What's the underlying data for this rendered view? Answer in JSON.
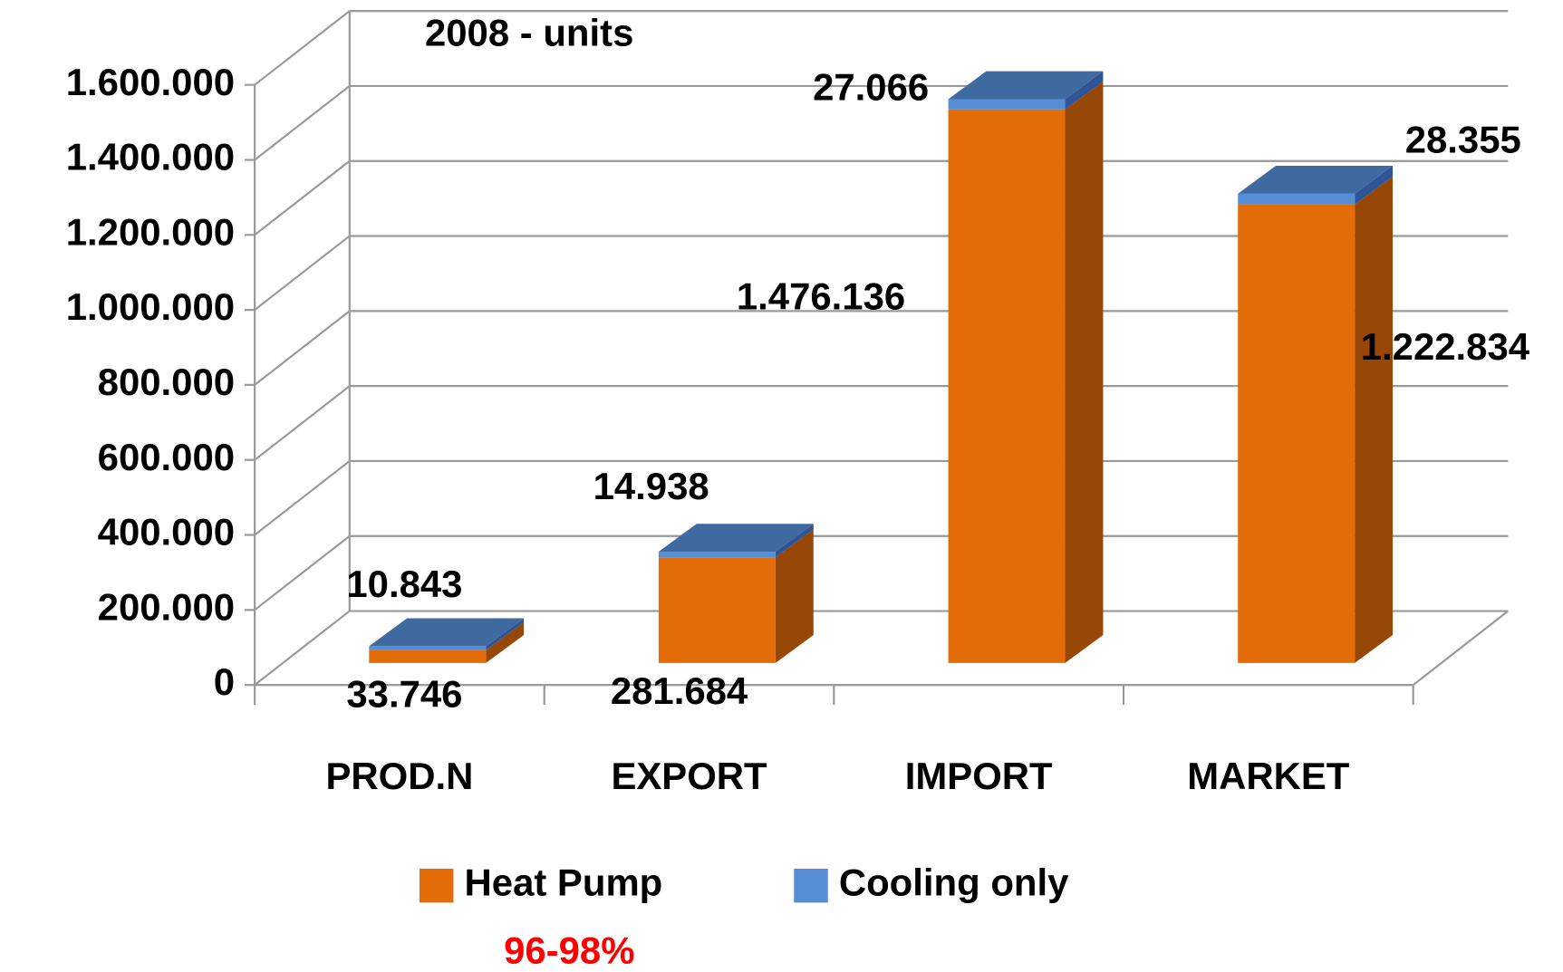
{
  "chart_data": {
    "type": "bar3d_stacked",
    "title": "2008 - units",
    "categories": [
      "PROD.N",
      "EXPORT",
      "IMPORT",
      "MARKET"
    ],
    "series": [
      {
        "name": "Heat Pump",
        "color": "#E36C09",
        "values": [
          33746,
          281684,
          1476136,
          1222834
        ],
        "value_labels": [
          "33.746",
          "281.684",
          "1.476.136",
          "1.222.834"
        ]
      },
      {
        "name": "Cooling only",
        "color": "#558ED5",
        "values": [
          10843,
          14938,
          27066,
          28355
        ],
        "value_labels": [
          "10.843",
          "14.938",
          "27.066",
          "28.355"
        ]
      }
    ],
    "ylim": [
      0,
      1600000
    ],
    "yticks": [
      0,
      {
        "value": 200000,
        "label": "200.000"
      },
      {
        "value": 400000,
        "label": "400.000"
      },
      {
        "value": 600000,
        "label": "600.000"
      },
      {
        "value": 800000,
        "label": "800.000"
      },
      {
        "value": 1000000,
        "label": "1.000.000"
      },
      {
        "value": 1200000,
        "label": "1.200.000"
      },
      {
        "value": 1400000,
        "label": "1.400.000"
      },
      {
        "value": 1600000,
        "label": "1.600.000"
      }
    ],
    "grid": true,
    "legend": "bottom",
    "annotation": "96-98%"
  }
}
